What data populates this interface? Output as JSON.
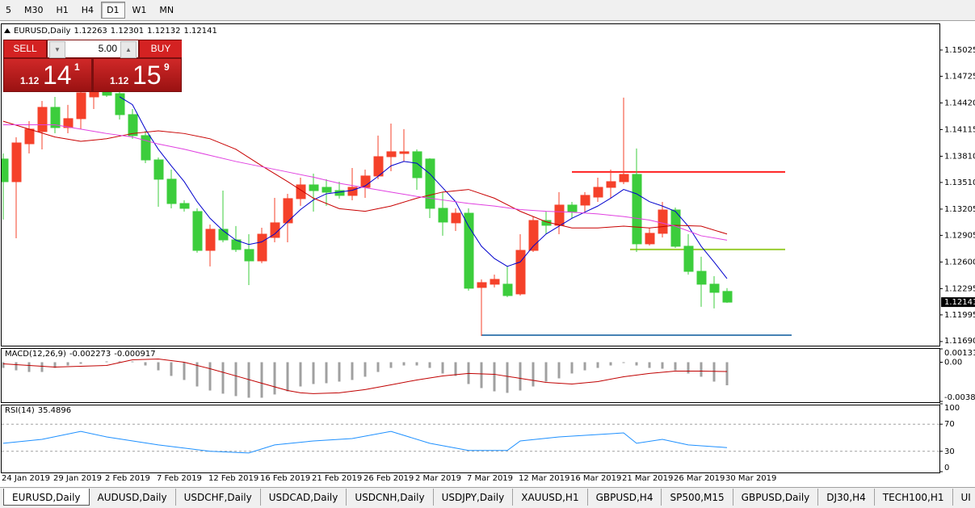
{
  "toolbar": {
    "timeframes": [
      "5",
      "M30",
      "H1",
      "H4",
      "D1",
      "W1",
      "MN"
    ],
    "active": 4
  },
  "trade_panel": {
    "sell": "SELL",
    "buy": "BUY",
    "volume": "5.00",
    "sell_price": [
      "1.12",
      "14",
      "1"
    ],
    "buy_price": [
      "1.12",
      "15",
      "9"
    ]
  },
  "chart_data": [
    {
      "type": "candlestick",
      "title": "EURUSD,Daily",
      "categories": [
        "24 Jan 2019",
        null,
        null,
        null,
        "29 Jan 2019",
        null,
        null,
        null,
        "2 Feb 2019",
        null,
        null,
        null,
        "7 Feb 2019",
        null,
        null,
        null,
        "12 Feb 2019",
        null,
        null,
        null,
        "16 Feb 2019",
        null,
        null,
        null,
        "21 Feb 2019",
        null,
        null,
        null,
        "26 Feb 2019",
        null,
        null,
        null,
        "2 Mar 2019",
        null,
        null,
        null,
        "7 Mar 2019",
        null,
        null,
        null,
        "12 Mar 2019",
        null,
        null,
        null,
        "16 Mar 2019",
        null,
        null,
        null,
        "21 Mar 2019",
        null,
        null,
        null,
        "26 Mar 2019",
        null,
        null,
        null,
        "30 Mar 2019"
      ],
      "open": [
        1.13778,
        1.13519,
        1.13953,
        1.14092,
        1.14369,
        1.14138,
        1.1424,
        1.14489,
        1.14563,
        1.14526,
        1.14286,
        1.14046,
        1.13768,
        1.13547,
        1.13269,
        1.13177,
        1.12733,
        1.12974,
        1.12853,
        1.12743,
        1.12613,
        1.12881,
        1.13048,
        1.13325,
        1.13482,
        1.13454,
        1.13417,
        1.13362,
        1.13454,
        1.13584,
        1.13805,
        1.13842,
        1.13861,
        1.13778,
        1.13214,
        1.13048,
        1.13158,
        1.12309,
        1.12346,
        1.12346,
        1.12235,
        1.12733,
        1.13075,
        1.1302,
        1.13251,
        1.13251,
        1.13343,
        1.13454,
        1.13519,
        1.13602,
        1.12808,
        1.12928,
        1.13195,
        1.1278,
        1.12493,
        1.12346,
        1.12263
      ],
      "high": [
        1.13842,
        1.14027,
        1.14212,
        1.14443,
        1.14489,
        1.14397,
        1.146,
        1.14674,
        1.146,
        1.14563,
        1.1435,
        1.14101,
        1.13796,
        1.13657,
        1.13306,
        1.13214,
        1.13029,
        1.13417,
        1.13011,
        1.12918,
        1.12992,
        1.13334,
        1.1338,
        1.13565,
        1.13611,
        1.13547,
        1.13519,
        1.13676,
        1.13657,
        1.14046,
        1.14184,
        1.1412,
        1.13888,
        1.13787,
        1.13399,
        1.13214,
        1.13214,
        1.12401,
        1.12456,
        1.12549,
        1.12918,
        1.13121,
        1.13177,
        1.13399,
        1.13288,
        1.13399,
        1.13565,
        1.13657,
        1.1448,
        1.13898,
        1.12992,
        1.13288,
        1.13223,
        1.12918,
        1.1266,
        1.12438,
        1.12301
      ],
      "low": [
        1.13085,
        1.12872,
        1.13842,
        1.13888,
        1.14073,
        1.14073,
        1.1412,
        1.1435,
        1.14489,
        1.1423,
        1.14009,
        1.13731,
        1.13232,
        1.13214,
        1.13177,
        1.12706,
        1.12549,
        1.12826,
        1.12715,
        1.12336,
        1.12586,
        1.12826,
        1.12826,
        1.13242,
        1.13177,
        1.13242,
        1.13325,
        1.13306,
        1.13334,
        1.13547,
        1.13639,
        1.1375,
        1.13426,
        1.13103,
        1.129,
        1.12955,
        1.12272,
        1.11754,
        1.12309,
        1.12198,
        1.12216,
        1.12715,
        1.12918,
        1.12918,
        1.13103,
        1.13177,
        1.13288,
        1.13334,
        1.13491,
        1.12715,
        1.12789,
        1.12881,
        1.12761,
        1.12456,
        1.12087,
        1.12069,
        1.12132
      ],
      "close": [
        1.13519,
        1.13962,
        1.1412,
        1.14369,
        1.14138,
        1.1424,
        1.14535,
        1.14582,
        1.14508,
        1.14286,
        1.14046,
        1.13768,
        1.13547,
        1.13269,
        1.13214,
        1.12733,
        1.12974,
        1.12853,
        1.12743,
        1.12613,
        1.12918,
        1.13048,
        1.13325,
        1.13482,
        1.13417,
        1.13399,
        1.13362,
        1.13454,
        1.13584,
        1.13805,
        1.13861,
        1.13861,
        1.13565,
        1.13214,
        1.13057,
        1.13158,
        1.123,
        1.12364,
        1.12401,
        1.12216,
        1.12733,
        1.13075,
        1.1302,
        1.13251,
        1.13177,
        1.13362,
        1.13454,
        1.13519,
        1.13602,
        1.12808,
        1.12928,
        1.13195,
        1.1278,
        1.12493,
        1.12346,
        1.12253,
        1.12141
      ],
      "up_color": "#f5412a",
      "down_color": "#3ccd3c",
      "overlays": [
        {
          "color": "#0000cd",
          "x": [
            9,
            10,
            11,
            12,
            13,
            14,
            15,
            16,
            17,
            18,
            19,
            20,
            21,
            22,
            23,
            24,
            25,
            26,
            27,
            28,
            29,
            30,
            31,
            32,
            33,
            34,
            35,
            36,
            37,
            38,
            39,
            40,
            41,
            42,
            43,
            44,
            45,
            46,
            47,
            48,
            49,
            50,
            51,
            52,
            53,
            54,
            55,
            56
          ],
          "values": [
            1.1449,
            1.144,
            1.1412,
            1.1389,
            1.137,
            1.1352,
            1.1329,
            1.131,
            1.1296,
            1.1285,
            1.128,
            1.1283,
            1.1292,
            1.1306,
            1.132,
            1.1331,
            1.1338,
            1.134,
            1.1342,
            1.1347,
            1.1358,
            1.137,
            1.1375,
            1.1373,
            1.1361,
            1.1345,
            1.1329,
            1.1301,
            1.1278,
            1.1264,
            1.1255,
            1.126,
            1.1278,
            1.1292,
            1.1301,
            1.131,
            1.1317,
            1.1324,
            1.1333,
            1.1343,
            1.1338,
            1.1329,
            1.1324,
            1.1318,
            1.1301,
            1.1278,
            1.126,
            1.1241
          ]
        },
        {
          "color": "#c80000",
          "x": [
            0,
            2,
            4,
            6,
            8,
            10,
            12,
            14,
            16,
            18,
            20,
            22,
            24,
            26,
            28,
            30,
            32,
            34,
            36,
            38,
            40,
            42,
            44,
            46,
            48,
            50,
            52,
            54,
            56
          ],
          "values": [
            1.1421,
            1.1412,
            1.1403,
            1.1398,
            1.1401,
            1.1407,
            1.141,
            1.1407,
            1.1401,
            1.1389,
            1.137,
            1.1352,
            1.1333,
            1.1321,
            1.1318,
            1.1324,
            1.1333,
            1.134,
            1.1343,
            1.1333,
            1.1318,
            1.1306,
            1.1299,
            1.1299,
            1.1301,
            1.1299,
            1.1302,
            1.1301,
            1.1292
          ]
        },
        {
          "color": "#e040e0",
          "x": [
            0,
            2,
            4,
            6,
            8,
            10,
            12,
            14,
            16,
            18,
            20,
            22,
            24,
            26,
            28,
            30,
            32,
            34,
            36,
            38,
            40,
            42,
            44,
            46,
            48,
            50,
            52,
            54,
            56
          ],
          "values": [
            1.1417,
            1.1417,
            1.1417,
            1.1412,
            1.1407,
            1.1403,
            1.1395,
            1.1389,
            1.1382,
            1.1375,
            1.1369,
            1.1363,
            1.1357,
            1.135,
            1.1345,
            1.134,
            1.1335,
            1.1331,
            1.1327,
            1.1324,
            1.132,
            1.1318,
            1.1317,
            1.1315,
            1.1312,
            1.1308,
            1.1301,
            1.129,
            1.1285
          ]
        }
      ],
      "hlines": [
        {
          "value": 1.1363,
          "color": "#ff2020",
          "from": 44,
          "to": 60.5
        },
        {
          "value": 1.12743,
          "color": "#9acd32",
          "from": 48.5,
          "to": 60.5
        },
        {
          "value": 1.11763,
          "color": "#4682b4",
          "from": 37,
          "to": 61
        }
      ],
      "ylim": [
        1.11652,
        1.15311
      ],
      "yticks": [
        1.15025,
        1.14725,
        {
          "value": 1.1442,
          "label": "1.14420"
        },
        1.14115,
        {
          "value": 1.1381,
          "label": "1.13810"
        },
        {
          "value": 1.1351,
          "label": "1.13510"
        },
        1.13205,
        1.12905,
        {
          "value": 1.126,
          "label": "1.12600"
        },
        1.12295,
        1.11995,
        {
          "value": 1.1169,
          "label": "1.11690"
        }
      ],
      "grid": false
    },
    {
      "type": "macd",
      "title": "MACD(12,26,9)",
      "values": [
        -0.00056,
        -0.0008,
        -0.00096,
        -0.00096,
        -0.00056,
        -0.00032,
        -0.00016,
        0,
        8e-05,
        8e-05,
        8e-05,
        -0.00032,
        -0.0008,
        -0.00135,
        -0.00175,
        -0.00239,
        -0.00279,
        -0.0031,
        -0.00334,
        -0.0035,
        -0.0035,
        -0.00318,
        -0.00287,
        -0.00239,
        -0.00215,
        -0.00207,
        -0.00191,
        -0.00175,
        -0.00143,
        -0.00096,
        -0.00056,
        -0.00032,
        -0.00032,
        -0.00056,
        -0.00111,
        -0.00135,
        -0.00215,
        -0.00255,
        -0.00287,
        -0.00302,
        -0.00279,
        -0.00239,
        -0.00191,
        -0.00159,
        -0.00111,
        -0.0008,
        -0.00056,
        -0.00032,
        -8e-05,
        -0.00032,
        -0.00056,
        -0.00064,
        -0.0008,
        -0.00111,
        -0.00143,
        -0.00191,
        -0.002273
      ],
      "color": "#a0a0a0",
      "signal": {
        "color": "#c00000",
        "x": [
          0,
          4,
          8,
          10,
          12,
          14,
          16,
          18,
          20,
          22,
          23,
          24,
          26,
          28,
          30,
          32,
          34,
          36,
          38,
          40,
          42,
          44,
          46,
          48,
          50,
          52,
          54,
          56
        ],
        "values": [
          -0.00016,
          -0.00048,
          -0.00032,
          0.00024,
          0.00032,
          0,
          -0.00064,
          -0.00135,
          -0.00207,
          -0.00279,
          -0.00302,
          -0.0031,
          -0.00302,
          -0.0027,
          -0.00223,
          -0.00175,
          -0.00135,
          -0.00111,
          -0.00119,
          -0.00159,
          -0.00199,
          -0.00215,
          -0.00191,
          -0.00143,
          -0.00111,
          -0.00088,
          -0.00088,
          -0.000917
        ]
      },
      "ylim": [
        -0.003862,
        0.001313
      ],
      "yticks": [
        0.001313,
        {
          "value": 0,
          "label": "0.00"
        },
        -0.003862
      ]
    },
    {
      "type": "line",
      "title": "RSI(14)",
      "x": [
        0,
        3,
        6,
        8,
        12,
        16,
        19,
        21,
        24,
        27,
        30,
        33,
        36,
        39,
        40,
        43,
        48,
        49,
        51,
        53,
        56
      ],
      "values": [
        41.8,
        47.6,
        59.4,
        51.2,
        39.4,
        30,
        27.6,
        39.4,
        45.3,
        48.8,
        59.4,
        41.8,
        31.2,
        31.2,
        45.3,
        51.2,
        57.1,
        41.8,
        47.6,
        39.4,
        35.4896
      ],
      "color": "#1e90ff",
      "ylim": [
        0,
        100
      ],
      "yticks": [
        100,
        70,
        30,
        0
      ],
      "level_lines": true
    }
  ],
  "tabs": {
    "items": [
      "EURUSD,Daily",
      "AUDUSD,Daily",
      "USDCHF,Daily",
      "USDCAD,Daily",
      "USDCNH,Daily",
      "USDJPY,Daily",
      "XAUUSD,H1",
      "GBPUSD,H4",
      "SP500,M15",
      "GBPUSD,Daily",
      "DJ30,H4",
      "TECH100,H1",
      "UI"
    ],
    "active": 0
  }
}
